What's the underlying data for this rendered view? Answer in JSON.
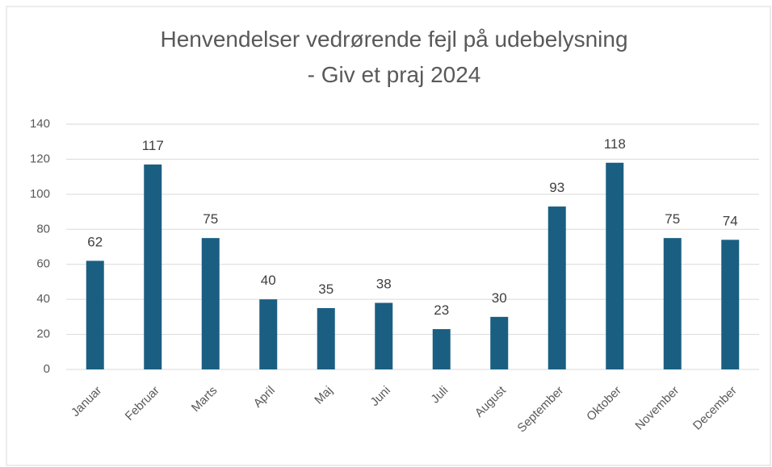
{
  "chart_data": {
    "type": "bar",
    "title": "Henvendelser vedrørende fejl på udebelysning",
    "subtitle": "- Giv et praj 2024",
    "categories": [
      "Januar",
      "Februar",
      "Marts",
      "April",
      "Maj",
      "Juni",
      "Juli",
      "August",
      "September",
      "Oktober",
      "November",
      "December"
    ],
    "values": [
      62,
      117,
      75,
      40,
      35,
      38,
      23,
      30,
      93,
      118,
      75,
      74
    ],
    "color": "#1a5f82",
    "ylim": [
      0,
      140
    ],
    "yticks": [
      0,
      20,
      40,
      60,
      80,
      100,
      120,
      140
    ],
    "grid": true
  }
}
